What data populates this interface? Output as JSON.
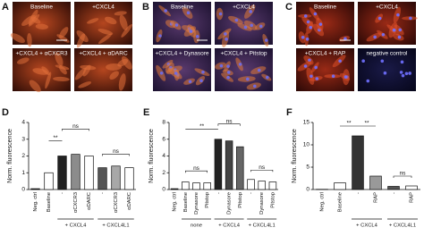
{
  "image_panels": [
    {
      "panel": "A",
      "labels": [
        "Baseline",
        "+CXCL4",
        "+CXCL4 + αCXCR3",
        "+CXCL4 + αDARC"
      ]
    },
    {
      "panel": "B",
      "labels": [
        "Baseline",
        "+CXCL4",
        "+CXCL4 + Dynasore",
        "+CXCL4 + Pitstop"
      ]
    },
    {
      "panel": "C",
      "labels": [
        "Baseline",
        "+CXCL4",
        "+CXCL4 + RAP",
        "negative control"
      ]
    }
  ],
  "chart_data": [
    {
      "type": "bar",
      "panel": "D",
      "y_label": "Norm. fluorescence",
      "ylim": [
        0,
        4
      ],
      "yticks": [
        0,
        1,
        2,
        3,
        4
      ],
      "groups": [
        {
          "name": null,
          "categories": [
            "Neg. ctrl",
            "Baseline"
          ],
          "values": [
            0.05,
            1.0
          ],
          "colors": [
            "#111111",
            "#ffffff"
          ]
        },
        {
          "name": "+ CXCL4",
          "categories": [
            "-",
            "αCXCR3",
            "αDARC"
          ],
          "values": [
            2.0,
            2.1,
            2.0
          ],
          "colors": [
            "#222222",
            "#8c8c8c",
            "#ffffff"
          ]
        },
        {
          "name": "+ CXCL4L1",
          "categories": [
            "-",
            "αCXCR3",
            "αDARC"
          ],
          "values": [
            1.3,
            1.4,
            1.3
          ],
          "colors": [
            "#555555",
            "#a8a8a8",
            "#ffffff"
          ]
        }
      ],
      "annotations": [
        "**",
        "ns",
        "ns"
      ]
    },
    {
      "type": "bar",
      "panel": "E",
      "y_label": "Norm. fluorescence",
      "ylim": [
        0,
        8
      ],
      "yticks": [
        0,
        2,
        4,
        6,
        8
      ],
      "groups": [
        {
          "name": null,
          "categories": [
            "Neg. ctrl"
          ],
          "values": [
            0.1
          ],
          "colors": [
            "#111111"
          ]
        },
        {
          "name": "none",
          "categories": [
            "Baseline",
            "Dynasore",
            "Pitstop"
          ],
          "values": [
            0.9,
            0.8,
            0.8
          ],
          "colors": [
            "#ffffff",
            "#ffffff",
            "#ffffff"
          ]
        },
        {
          "name": "+ CXCL4",
          "categories": [
            "-",
            "Dynasore",
            "Pitstop"
          ],
          "values": [
            6.0,
            5.8,
            5.1
          ],
          "colors": [
            "#222222",
            "#444444",
            "#666666"
          ]
        },
        {
          "name": "+ CXCL4L1",
          "categories": [
            "-",
            "Dynasore",
            "Pitstop"
          ],
          "values": [
            1.2,
            1.0,
            0.9
          ],
          "colors": [
            "#ffffff",
            "#ffffff",
            "#ffffff"
          ]
        }
      ],
      "annotations": [
        "**",
        "ns",
        "ns",
        "ns"
      ]
    },
    {
      "type": "bar",
      "panel": "F",
      "y_label": "Norm. fluorescence",
      "ylim": [
        0,
        15
      ],
      "yticks": [
        0,
        5,
        10,
        15
      ],
      "groups": [
        {
          "name": null,
          "categories": [
            "Neg. ctrl",
            "Baseline"
          ],
          "values": [
            0.05,
            1.5
          ],
          "colors": [
            "#111111",
            "#ffffff"
          ]
        },
        {
          "name": "+ CXCL4",
          "categories": [
            "-",
            "RAP"
          ],
          "values": [
            12.0,
            3.0
          ],
          "colors": [
            "#333333",
            "#999999"
          ]
        },
        {
          "name": "+ CXCL4L1",
          "categories": [
            "-",
            "RAP"
          ],
          "values": [
            0.7,
            0.8
          ],
          "colors": [
            "#555555",
            "#ffffff"
          ]
        }
      ],
      "annotations": [
        "**",
        "**",
        "ns"
      ]
    }
  ]
}
